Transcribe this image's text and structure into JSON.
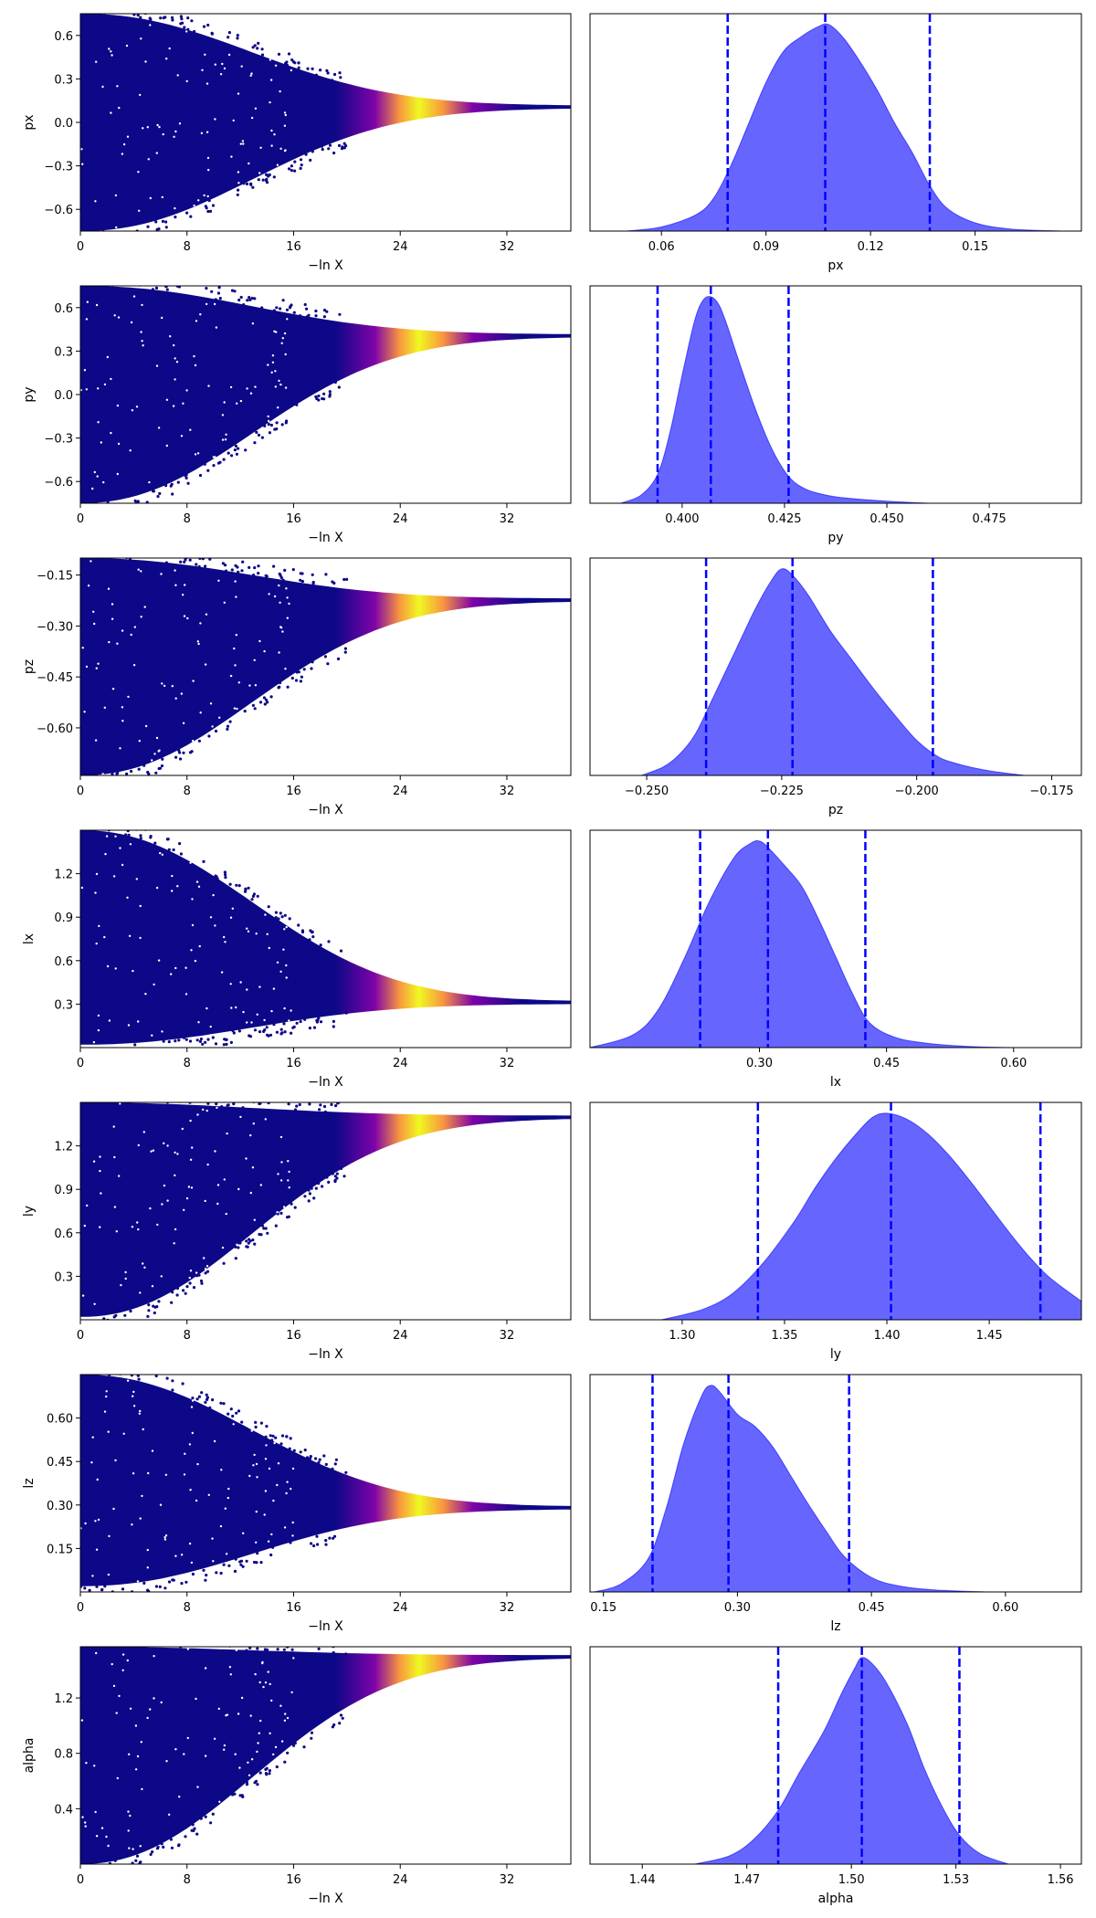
{
  "figure": {
    "colors": {
      "trace_low": "#0d0887",
      "trace_mid": "#7e03a8",
      "trace_high": "#f0f921",
      "posterior_fill": "#0000ff",
      "posterior_line": "#0000ff",
      "quantile_line": "#0000ff"
    },
    "colormap": "plasma"
  },
  "chart_data": [
    {
      "type": "scatter",
      "panel": "trace",
      "parameter": "px",
      "xlabel": "−ln X",
      "ylabel": "px",
      "xlim": [
        0,
        36.8
      ],
      "ylim": [
        -0.75,
        0.75
      ],
      "xticks": [
        0,
        8,
        16,
        24,
        32
      ],
      "yticks": [
        -0.6,
        -0.3,
        0.0,
        0.3,
        0.6
      ],
      "ytick_labels": [
        "−0.6",
        "−0.3",
        "0.0",
        "0.3",
        "0.6"
      ],
      "final_value": 0.107,
      "envelope_start": [
        -0.75,
        0.75
      ],
      "color_peak_x": 25.5
    },
    {
      "type": "area",
      "panel": "posterior",
      "parameter": "px",
      "xlabel": "px",
      "xlim": [
        0.0395,
        0.1805
      ],
      "xticks": [
        0.06,
        0.09,
        0.12,
        0.15
      ],
      "xtick_labels": [
        "0.06",
        "0.09",
        "0.12",
        "0.15"
      ],
      "x": [
        0.05,
        0.06,
        0.07,
        0.075,
        0.08,
        0.085,
        0.09,
        0.095,
        0.1,
        0.105,
        0.108,
        0.112,
        0.117,
        0.122,
        0.127,
        0.132,
        0.137,
        0.142,
        0.15,
        0.16,
        0.175
      ],
      "density": [
        0.0,
        0.02,
        0.08,
        0.16,
        0.32,
        0.52,
        0.72,
        0.87,
        0.94,
        0.99,
        1.0,
        0.94,
        0.82,
        0.68,
        0.52,
        0.38,
        0.22,
        0.11,
        0.04,
        0.01,
        0.0
      ],
      "quantiles": [
        0.079,
        0.107,
        0.137
      ]
    },
    {
      "type": "scatter",
      "panel": "trace",
      "parameter": "py",
      "xlabel": "−ln X",
      "ylabel": "py",
      "xlim": [
        0,
        36.8
      ],
      "ylim": [
        -0.75,
        0.75
      ],
      "xticks": [
        0,
        8,
        16,
        24,
        32
      ],
      "yticks": [
        -0.6,
        -0.3,
        0.0,
        0.3,
        0.6
      ],
      "ytick_labels": [
        "−0.6",
        "−0.3",
        "0.0",
        "0.3",
        "0.6"
      ],
      "final_value": 0.407,
      "envelope_start": [
        -0.75,
        0.75
      ],
      "color_peak_x": 25.5
    },
    {
      "type": "area",
      "panel": "posterior",
      "parameter": "py",
      "xlabel": "py",
      "xlim": [
        0.3775,
        0.4975
      ],
      "xticks": [
        0.4,
        0.425,
        0.45,
        0.475
      ],
      "xtick_labels": [
        "0.400",
        "0.425",
        "0.450",
        "0.475"
      ],
      "x": [
        0.385,
        0.39,
        0.394,
        0.397,
        0.4,
        0.403,
        0.405,
        0.407,
        0.409,
        0.411,
        0.414,
        0.418,
        0.422,
        0.426,
        0.43,
        0.435,
        0.44,
        0.45,
        0.46
      ],
      "density": [
        0.0,
        0.04,
        0.14,
        0.34,
        0.62,
        0.88,
        0.98,
        1.0,
        0.96,
        0.86,
        0.68,
        0.45,
        0.26,
        0.13,
        0.07,
        0.04,
        0.025,
        0.01,
        0.0
      ],
      "quantiles": [
        0.394,
        0.407,
        0.426
      ]
    },
    {
      "type": "scatter",
      "panel": "trace",
      "parameter": "pz",
      "xlabel": "−ln X",
      "ylabel": "pz",
      "xlim": [
        0,
        36.8
      ],
      "ylim": [
        -0.74,
        -0.1
      ],
      "xticks": [
        0,
        8,
        16,
        24,
        32
      ],
      "yticks": [
        -0.6,
        -0.45,
        -0.3,
        -0.15
      ],
      "ytick_labels": [
        "−0.60",
        "−0.45",
        "−0.30",
        "−0.15"
      ],
      "final_value": -0.223,
      "envelope_start": [
        -0.74,
        -0.1
      ],
      "color_peak_x": 25.5
    },
    {
      "type": "area",
      "panel": "posterior",
      "parameter": "pz",
      "xlabel": "pz",
      "xlim": [
        -0.2605,
        -0.1695
      ],
      "xticks": [
        -0.25,
        -0.225,
        -0.2,
        -0.175
      ],
      "xtick_labels": [
        "−0.250",
        "−0.225",
        "−0.200",
        "−0.175"
      ],
      "x": [
        -0.251,
        -0.247,
        -0.244,
        -0.241,
        -0.238,
        -0.234,
        -0.23,
        -0.227,
        -0.225,
        -0.223,
        -0.22,
        -0.216,
        -0.212,
        -0.208,
        -0.204,
        -0.2,
        -0.196,
        -0.193,
        -0.19,
        -0.186,
        -0.18
      ],
      "density": [
        0.0,
        0.04,
        0.1,
        0.2,
        0.36,
        0.58,
        0.8,
        0.94,
        1.0,
        0.97,
        0.87,
        0.7,
        0.56,
        0.42,
        0.29,
        0.17,
        0.09,
        0.06,
        0.04,
        0.02,
        0.0
      ],
      "quantiles": [
        -0.239,
        -0.223,
        -0.197
      ]
    },
    {
      "type": "scatter",
      "panel": "trace",
      "parameter": "lx",
      "xlabel": "−ln X",
      "ylabel": "lx",
      "xlim": [
        0,
        36.8
      ],
      "ylim": [
        0.0,
        1.5
      ],
      "xticks": [
        0,
        8,
        16,
        24,
        32
      ],
      "yticks": [
        0.3,
        0.6,
        0.9,
        1.2
      ],
      "ytick_labels": [
        "0.3",
        "0.6",
        "0.9",
        "1.2"
      ],
      "final_value": 0.31,
      "envelope_start": [
        0.02,
        1.5
      ],
      "color_peak_x": 25.5
    },
    {
      "type": "area",
      "panel": "posterior",
      "parameter": "lx",
      "xlabel": "lx",
      "xlim": [
        0.1,
        0.68
      ],
      "xticks": [
        0.3,
        0.45,
        0.6
      ],
      "xtick_labels": [
        "0.30",
        "0.45",
        "0.60"
      ],
      "x": [
        0.1,
        0.15,
        0.18,
        0.21,
        0.24,
        0.27,
        0.29,
        0.3,
        0.31,
        0.33,
        0.35,
        0.37,
        0.39,
        0.41,
        0.43,
        0.46,
        0.5,
        0.55,
        0.6
      ],
      "density": [
        0.0,
        0.06,
        0.18,
        0.42,
        0.7,
        0.92,
        0.99,
        1.0,
        0.97,
        0.88,
        0.78,
        0.62,
        0.44,
        0.26,
        0.12,
        0.05,
        0.02,
        0.005,
        0.0
      ],
      "quantiles": [
        0.23,
        0.31,
        0.425
      ]
    },
    {
      "type": "scatter",
      "panel": "trace",
      "parameter": "ly",
      "xlabel": "−ln X",
      "ylabel": "ly",
      "xlim": [
        0,
        36.8
      ],
      "ylim": [
        0.0,
        1.5
      ],
      "xticks": [
        0,
        8,
        16,
        24,
        32
      ],
      "yticks": [
        0.3,
        0.6,
        0.9,
        1.2
      ],
      "ytick_labels": [
        "0.3",
        "0.6",
        "0.9",
        "1.2"
      ],
      "final_value": 1.4,
      "envelope_start": [
        0.02,
        1.5
      ],
      "color_peak_x": 25.5
    },
    {
      "type": "area",
      "panel": "posterior",
      "parameter": "ly",
      "xlabel": "ly",
      "xlim": [
        1.255,
        1.495
      ],
      "xticks": [
        1.3,
        1.35,
        1.4,
        1.45
      ],
      "xtick_labels": [
        "1.30",
        "1.35",
        "1.40",
        "1.45"
      ],
      "x": [
        1.29,
        1.31,
        1.325,
        1.34,
        1.355,
        1.365,
        1.375,
        1.385,
        1.393,
        1.4,
        1.41,
        1.42,
        1.43,
        1.44,
        1.45,
        1.46,
        1.47,
        1.48,
        1.495
      ],
      "density": [
        0.0,
        0.05,
        0.13,
        0.28,
        0.48,
        0.64,
        0.78,
        0.9,
        0.98,
        1.0,
        0.97,
        0.9,
        0.8,
        0.68,
        0.55,
        0.42,
        0.3,
        0.2,
        0.09
      ],
      "quantiles": [
        1.337,
        1.402,
        1.475
      ]
    },
    {
      "type": "scatter",
      "panel": "trace",
      "parameter": "lz",
      "xlabel": "−ln X",
      "ylabel": "lz",
      "xlim": [
        0,
        36.8
      ],
      "ylim": [
        0.0,
        0.75
      ],
      "xticks": [
        0,
        8,
        16,
        24,
        32
      ],
      "yticks": [
        0.15,
        0.3,
        0.45,
        0.6
      ],
      "ytick_labels": [
        "0.15",
        "0.30",
        "0.45",
        "0.60"
      ],
      "final_value": 0.29,
      "envelope_start": [
        0.02,
        0.75
      ],
      "color_peak_x": 25.5
    },
    {
      "type": "area",
      "panel": "posterior",
      "parameter": "lz",
      "xlabel": "lz",
      "xlim": [
        0.135,
        0.685
      ],
      "xticks": [
        0.15,
        0.3,
        0.45,
        0.6
      ],
      "xtick_labels": [
        "0.15",
        "0.30",
        "0.45",
        "0.60"
      ],
      "x": [
        0.14,
        0.17,
        0.2,
        0.22,
        0.24,
        0.26,
        0.27,
        0.28,
        0.3,
        0.32,
        0.34,
        0.36,
        0.38,
        0.4,
        0.42,
        0.45,
        0.48,
        0.52,
        0.58
      ],
      "density": [
        0.0,
        0.04,
        0.16,
        0.4,
        0.72,
        0.95,
        1.0,
        0.97,
        0.86,
        0.8,
        0.7,
        0.56,
        0.42,
        0.29,
        0.17,
        0.07,
        0.03,
        0.01,
        0.0
      ],
      "quantiles": [
        0.205,
        0.29,
        0.425
      ]
    },
    {
      "type": "scatter",
      "panel": "trace",
      "parameter": "alpha",
      "xlabel": "−ln X",
      "ylabel": "alpha",
      "xlim": [
        0,
        36.8
      ],
      "ylim": [
        0.0,
        1.57
      ],
      "xticks": [
        0,
        8,
        16,
        24,
        32
      ],
      "yticks": [
        0.4,
        0.8,
        1.2
      ],
      "ytick_labels": [
        "0.4",
        "0.8",
        "1.2"
      ],
      "final_value": 1.5,
      "envelope_start": [
        0.0,
        1.57
      ],
      "color_peak_x": 25.5
    },
    {
      "type": "area",
      "panel": "posterior",
      "parameter": "alpha",
      "xlabel": "alpha",
      "xlim": [
        1.425,
        1.566
      ],
      "xticks": [
        1.44,
        1.47,
        1.5,
        1.53,
        1.56
      ],
      "xtick_labels": [
        "1.44",
        "1.47",
        "1.50",
        "1.53",
        "1.56"
      ],
      "x": [
        1.455,
        1.465,
        1.472,
        1.479,
        1.485,
        1.492,
        1.497,
        1.501,
        1.503,
        1.506,
        1.51,
        1.516,
        1.521,
        1.526,
        1.531,
        1.537,
        1.545
      ],
      "density": [
        0.0,
        0.04,
        0.12,
        0.26,
        0.44,
        0.64,
        0.82,
        0.95,
        1.0,
        0.97,
        0.88,
        0.68,
        0.46,
        0.28,
        0.14,
        0.05,
        0.0
      ],
      "quantiles": [
        1.479,
        1.503,
        1.531
      ]
    }
  ]
}
